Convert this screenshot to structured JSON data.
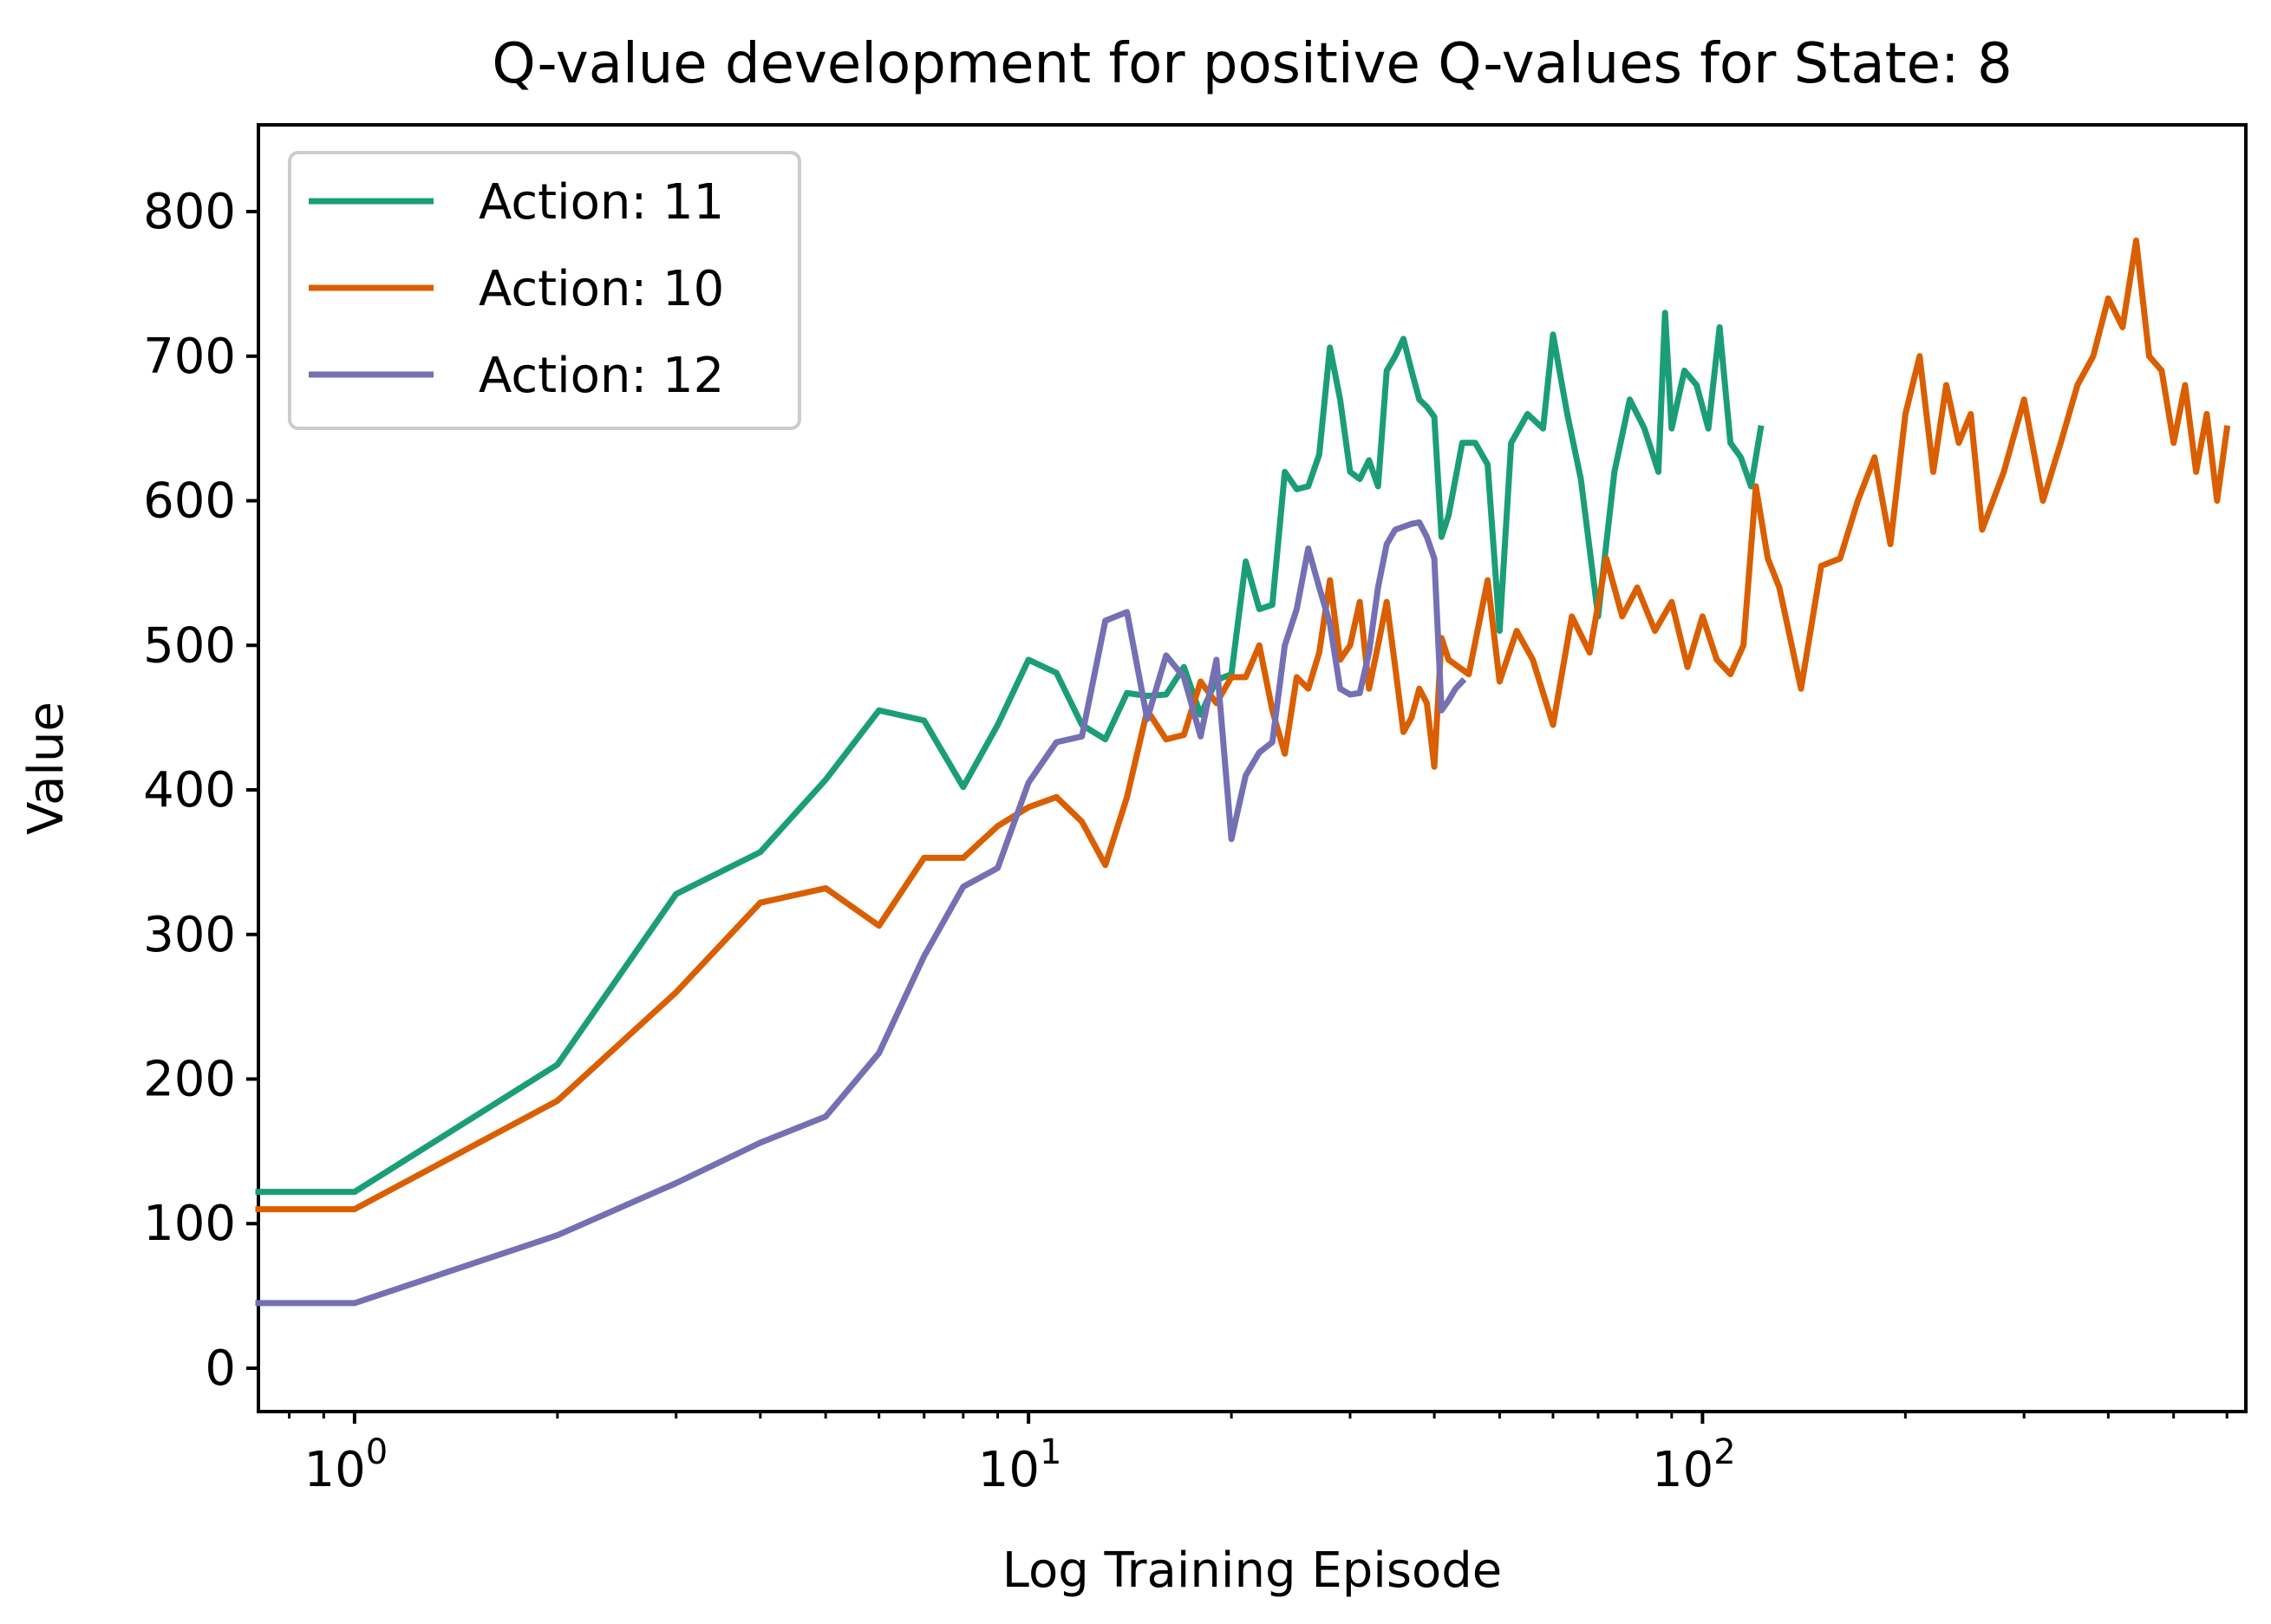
{
  "chart_data": {
    "type": "line",
    "title": "Q-value development for positive Q-values for State: 8",
    "xlabel": "Log Training Episode",
    "ylabel": "Value",
    "xscale": "log",
    "xlim": [
      0.72,
      640
    ],
    "ylim": [
      -30,
      860
    ],
    "legend_position": "upper-left",
    "grid": false,
    "y_ticks": [
      0,
      100,
      200,
      300,
      400,
      500,
      600,
      700,
      800
    ],
    "y_tick_labels": [
      "0",
      "100",
      "200",
      "300",
      "400",
      "500",
      "600",
      "700",
      "800"
    ],
    "x_ticks": [
      1,
      10,
      100
    ],
    "x_tick_bases": [
      "10",
      "10",
      "10"
    ],
    "x_tick_exponents": [
      "0",
      "1",
      "2"
    ],
    "series": [
      {
        "name": "Action: 11",
        "color": "#1b9e77",
        "x": [
          0.72,
          1,
          2,
          3,
          4,
          5,
          6,
          7,
          8,
          9,
          10,
          11,
          12,
          13,
          14,
          15,
          16,
          17,
          18,
          19,
          20,
          21,
          22,
          23,
          24,
          25,
          26,
          27,
          28,
          29,
          30,
          31,
          32,
          33,
          34,
          35,
          36,
          37,
          38,
          39,
          40,
          41,
          42,
          44,
          46,
          48,
          50,
          52,
          55,
          58,
          60,
          63,
          66,
          70,
          74,
          78,
          82,
          86,
          88,
          90,
          94,
          98,
          102,
          106,
          110,
          114,
          118,
          122
        ],
        "y": [
          122,
          122,
          210,
          328,
          357,
          407,
          455,
          448,
          402,
          445,
          490,
          481,
          445,
          435,
          467,
          465,
          466,
          485,
          452,
          476,
          480,
          558,
          525,
          528,
          620,
          608,
          610,
          632,
          706,
          670,
          620,
          615,
          628,
          610,
          690,
          700,
          712,
          690,
          670,
          665,
          658,
          575,
          590,
          640,
          640,
          625,
          510,
          640,
          660,
          650,
          715,
          660,
          615,
          520,
          620,
          670,
          650,
          620,
          730,
          650,
          690,
          680,
          650,
          720,
          640,
          630,
          610,
          650
        ]
      },
      {
        "name": "Action: 10",
        "color": "#d95f02",
        "x": [
          0.72,
          1,
          2,
          3,
          4,
          5,
          6,
          7,
          8,
          9,
          10,
          11,
          12,
          13,
          14,
          15,
          16,
          17,
          18,
          19,
          20,
          21,
          22,
          23,
          24,
          25,
          26,
          27,
          28,
          29,
          30,
          31,
          32,
          33,
          34,
          35,
          36,
          37,
          38,
          39,
          40,
          41,
          42,
          45,
          48,
          50,
          53,
          56,
          60,
          64,
          68,
          72,
          76,
          80,
          85,
          90,
          95,
          100,
          105,
          110,
          115,
          120,
          125,
          130,
          140,
          150,
          160,
          170,
          180,
          190,
          200,
          210,
          220,
          230,
          240,
          250,
          260,
          280,
          300,
          320,
          340,
          360,
          380,
          400,
          420,
          440,
          460,
          480,
          500,
          520,
          540,
          560,
          580,
          600
        ],
        "y": [
          110,
          110,
          185,
          260,
          322,
          332,
          306,
          353,
          353,
          375,
          388,
          395,
          378,
          348,
          395,
          455,
          435,
          438,
          475,
          460,
          478,
          478,
          500,
          455,
          425,
          478,
          470,
          495,
          545,
          490,
          500,
          530,
          470,
          500,
          530,
          485,
          440,
          450,
          470,
          460,
          416,
          505,
          490,
          480,
          545,
          475,
          510,
          490,
          445,
          520,
          495,
          560,
          520,
          540,
          510,
          530,
          485,
          520,
          490,
          480,
          500,
          610,
          560,
          540,
          470,
          555,
          560,
          600,
          630,
          570,
          660,
          700,
          620,
          680,
          640,
          660,
          580,
          620,
          670,
          600,
          640,
          680,
          700,
          740,
          720,
          780,
          700,
          690,
          640,
          680,
          620,
          660,
          600,
          650
        ]
      },
      {
        "name": "Action: 12",
        "color": "#7570b3",
        "x": [
          0.72,
          1,
          2,
          3,
          4,
          5,
          6,
          7,
          8,
          9,
          10,
          11,
          12,
          13,
          14,
          15,
          16,
          17,
          18,
          19,
          20,
          21,
          22,
          23,
          24,
          25,
          26,
          27,
          28,
          29,
          30,
          31,
          32,
          33,
          34,
          35,
          36,
          37,
          38,
          39,
          40,
          41,
          42,
          43,
          44
        ],
        "y": [
          45,
          45,
          92,
          128,
          156,
          174,
          218,
          285,
          333,
          346,
          405,
          433,
          437,
          517,
          523,
          449,
          493,
          478,
          437,
          490,
          366,
          410,
          426,
          433,
          500,
          525,
          567,
          540,
          515,
          470,
          466,
          467,
          495,
          540,
          570,
          580,
          582,
          584,
          585,
          575,
          560,
          455,
          462,
          470,
          475
        ]
      }
    ]
  }
}
